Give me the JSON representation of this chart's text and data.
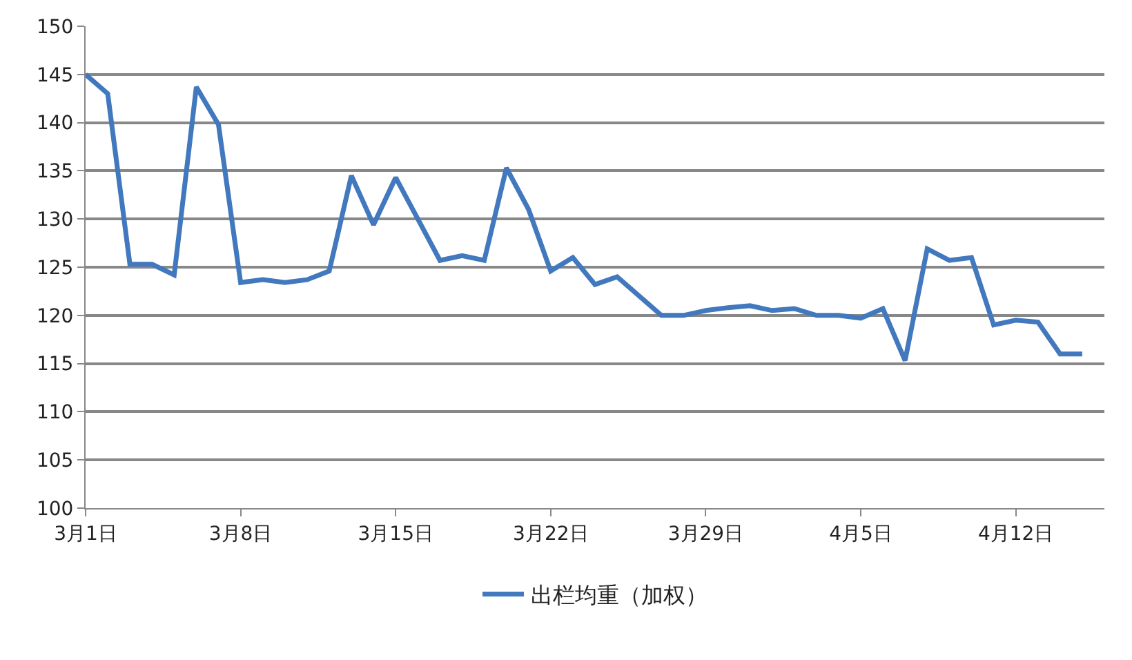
{
  "chart_data": {
    "type": "line",
    "x": [
      "--03-01",
      "--03-02",
      "--03-03",
      "--03-04",
      "--03-05",
      "--03-06",
      "--03-07",
      "--03-08",
      "--03-09",
      "--03-10",
      "--03-11",
      "--03-12",
      "--03-13",
      "--03-14",
      "--03-15",
      "--03-16",
      "--03-17",
      "--03-18",
      "--03-19",
      "--03-20",
      "--03-21",
      "--03-22",
      "--03-23",
      "--03-24",
      "--03-25",
      "--03-26",
      "--03-27",
      "--03-28",
      "--03-29",
      "--03-30",
      "--03-31",
      "--04-01",
      "--04-02",
      "--04-03",
      "--04-04",
      "--04-05",
      "--04-06",
      "--04-07",
      "--04-08",
      "--04-09",
      "--04-10",
      "--04-11",
      "--04-12",
      "--04-13",
      "--04-14",
      "--04-15"
    ],
    "series": [
      {
        "name": "出栏均重（加权）",
        "color": "#4178be",
        "values": [
          145,
          143,
          125.3,
          125.3,
          124.2,
          143.7,
          139.8,
          123.4,
          123.7,
          123.4,
          123.7,
          124.6,
          134.5,
          129.4,
          134.3,
          130,
          125.7,
          126.2,
          125.7,
          135.3,
          131,
          124.6,
          126,
          123.2,
          124,
          122,
          120,
          120,
          120.5,
          120.8,
          121,
          120.5,
          120.7,
          120,
          120,
          119.7,
          120.7,
          115.3,
          126.9,
          125.7,
          126,
          119,
          119.5,
          119.3,
          116,
          116
        ]
      }
    ],
    "xlim": [
      "--03-01",
      "--04-16"
    ],
    "xticks": [
      {
        "value": "--03-01",
        "label": "3月1日"
      },
      {
        "value": "--03-08",
        "label": "3月8日"
      },
      {
        "value": "--03-15",
        "label": "3月15日"
      },
      {
        "value": "--03-22",
        "label": "3月22日"
      },
      {
        "value": "--03-29",
        "label": "3月29日"
      },
      {
        "value": "--04-05",
        "label": "4月5日"
      },
      {
        "value": "--04-12",
        "label": "4月12日"
      }
    ],
    "ylim": [
      100,
      150
    ],
    "yticks": [
      100,
      105,
      110,
      115,
      120,
      125,
      130,
      135,
      140,
      145,
      150
    ],
    "grid": "y",
    "legend": "bottom",
    "marker": "none",
    "line_style": "solid"
  }
}
